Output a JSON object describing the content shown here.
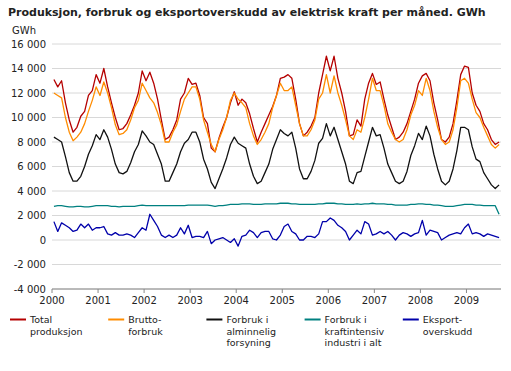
{
  "chart_data": {
    "type": "line",
    "title": "Produksjon, forbruk og eksportoverskudd av elektrisk kraft per måned. GWh",
    "y_label": "GWh",
    "grid": true,
    "legend": "bottom",
    "xlim": [
      2000,
      2009.75
    ],
    "xticks": [
      2000,
      2001,
      2002,
      2003,
      2004,
      2005,
      2006,
      2007,
      2008,
      2009
    ],
    "ylim": [
      -4000,
      16000
    ],
    "yticks": [
      {
        "value": -4000,
        "label": "-4 000"
      },
      {
        "value": -2000,
        "label": "-2 000"
      },
      0,
      {
        "value": 2000,
        "label": "2 000"
      },
      {
        "value": 4000,
        "label": "4 000"
      },
      {
        "value": 6000,
        "label": "6 000"
      },
      {
        "value": 8000,
        "label": "8 000"
      },
      {
        "value": 10000,
        "label": "10 000"
      },
      {
        "value": 12000,
        "label": "12 000"
      },
      {
        "value": 14000,
        "label": "14 000"
      },
      {
        "value": 16000,
        "label": "16 000"
      }
    ],
    "x": [
      2000.0416666667,
      2000.125,
      2000.2083333333,
      2000.2916666667,
      2000.375,
      2000.4583333333,
      2000.5416666667,
      2000.625,
      2000.7083333333,
      2000.7916666667,
      2000.875,
      2000.9583333333,
      2001.0416666667,
      2001.125,
      2001.2083333333,
      2001.2916666667,
      2001.375,
      2001.4583333333,
      2001.5416666667,
      2001.625,
      2001.7083333333,
      2001.7916666667,
      2001.875,
      2001.9583333333,
      2002.0416666667,
      2002.125,
      2002.2083333333,
      2002.2916666667,
      2002.375,
      2002.4583333333,
      2002.5416666667,
      2002.625,
      2002.7083333333,
      2002.7916666667,
      2002.875,
      2002.9583333333,
      2003.0416666667,
      2003.125,
      2003.2083333333,
      2003.2916666667,
      2003.375,
      2003.4583333333,
      2003.5416666667,
      2003.625,
      2003.7083333333,
      2003.7916666667,
      2003.875,
      2003.9583333333,
      2004.0416666667,
      2004.125,
      2004.2083333333,
      2004.2916666667,
      2004.375,
      2004.4583333333,
      2004.5416666667,
      2004.625,
      2004.7083333333,
      2004.7916666667,
      2004.875,
      2004.9583333333,
      2005.0416666667,
      2005.125,
      2005.2083333333,
      2005.2916666667,
      2005.375,
      2005.4583333333,
      2005.5416666667,
      2005.625,
      2005.7083333333,
      2005.7916666667,
      2005.875,
      2005.9583333333,
      2006.0416666667,
      2006.125,
      2006.2083333333,
      2006.2916666667,
      2006.375,
      2006.4583333333,
      2006.5416666667,
      2006.625,
      2006.7083333333,
      2006.7916666667,
      2006.875,
      2006.9583333333,
      2007.0416666667,
      2007.125,
      2007.2083333333,
      2007.2916666667,
      2007.375,
      2007.4583333333,
      2007.5416666667,
      2007.625,
      2007.7083333333,
      2007.7916666667,
      2007.875,
      2007.9583333333,
      2008.0416666667,
      2008.125,
      2008.2083333333,
      2008.2916666667,
      2008.375,
      2008.4583333333,
      2008.5416666667,
      2008.625,
      2008.7083333333,
      2008.7916666667,
      2008.875,
      2008.9583333333,
      2009.0416666667,
      2009.125,
      2009.2083333333,
      2009.2916666667,
      2009.375,
      2009.4583333333,
      2009.5416666667,
      2009.625,
      2009.7083333333
    ],
    "series": [
      {
        "name": "Total\nproduksjon",
        "color": "#b50000",
        "values": [
          13100,
          12500,
          13000,
          11200,
          9800,
          8800,
          9200,
          10100,
          10500,
          11800,
          12200,
          13500,
          12800,
          14000,
          12500,
          11200,
          10000,
          9000,
          9100,
          9500,
          10200,
          11000,
          12000,
          13800,
          13000,
          13700,
          12800,
          11500,
          9800,
          8200,
          8400,
          9000,
          9800,
          11500,
          12000,
          13200,
          12700,
          12800,
          11800,
          10000,
          9500,
          7500,
          7200,
          8300,
          9200,
          10000,
          11200,
          12100,
          11000,
          11500,
          11200,
          10300,
          9100,
          8000,
          8800,
          9500,
          10200,
          10900,
          11800,
          13200,
          13300,
          13500,
          13200,
          11500,
          9500,
          8500,
          8800,
          9300,
          10000,
          12000,
          13500,
          15000,
          13800,
          15000,
          13200,
          12000,
          10500,
          8500,
          8600,
          9800,
          9300,
          11500,
          12800,
          13600,
          12700,
          12900,
          11500,
          10200,
          9200,
          8200,
          8400,
          8800,
          9500,
          10500,
          11500,
          12800,
          13400,
          13600,
          13000,
          11200,
          9800,
          8200,
          8000,
          8400,
          9500,
          11400,
          13500,
          14200,
          14100,
          12000,
          11000,
          10500,
          9500,
          9000,
          8200,
          7800,
          8000
        ]
      },
      {
        "name": "Brutto-\nforbruk",
        "color": "#ff8c00",
        "values": [
          12000,
          11800,
          11600,
          10000,
          8800,
          8100,
          8400,
          8800,
          9500,
          10500,
          11400,
          12500,
          11800,
          12900,
          12000,
          10800,
          9400,
          8600,
          8700,
          9000,
          9800,
          10800,
          11400,
          12800,
          12200,
          11600,
          11200,
          10400,
          9400,
          8000,
          8000,
          8800,
          9400,
          10500,
          11500,
          12000,
          12500,
          12500,
          11500,
          9800,
          8800,
          7800,
          7200,
          8200,
          9000,
          10000,
          11400,
          12000,
          11500,
          11200,
          10800,
          9500,
          8500,
          7800,
          8200,
          8800,
          9500,
          10800,
          11800,
          12800,
          12200,
          12200,
          12500,
          11000,
          9500,
          8500,
          8500,
          9000,
          9800,
          11500,
          12000,
          13500,
          12000,
          13400,
          12000,
          11000,
          9800,
          8500,
          8200,
          9000,
          8800,
          10000,
          11500,
          13200,
          12200,
          12200,
          11000,
          9500,
          8800,
          8200,
          8000,
          8200,
          9000,
          10200,
          11000,
          12200,
          11800,
          13200,
          12200,
          10500,
          9200,
          8200,
          7800,
          8000,
          9000,
          10800,
          13000,
          13200,
          12800,
          11500,
          10400,
          10000,
          9200,
          8500,
          7800,
          7500,
          7800
        ]
      },
      {
        "name": "Forbruk i\nalminnelig\nforsyning",
        "color": "#111111",
        "values": [
          8400,
          8200,
          8000,
          6800,
          5500,
          4800,
          4800,
          5200,
          6000,
          7000,
          7700,
          8600,
          8200,
          9000,
          8400,
          7400,
          6200,
          5500,
          5400,
          5600,
          6300,
          7200,
          7800,
          8900,
          8500,
          8000,
          7800,
          7000,
          6200,
          4800,
          4800,
          5500,
          6200,
          7200,
          7900,
          8200,
          8800,
          8800,
          8000,
          6600,
          5800,
          4700,
          4200,
          5000,
          5800,
          6700,
          7800,
          8400,
          7900,
          7700,
          7500,
          6200,
          5200,
          4600,
          4800,
          5500,
          6200,
          7400,
          8200,
          9000,
          8700,
          8500,
          8800,
          7500,
          5800,
          5000,
          5000,
          5600,
          6500,
          7900,
          8300,
          9500,
          8500,
          9200,
          8200,
          7200,
          6200,
          4800,
          4600,
          5500,
          5600,
          6800,
          8000,
          9200,
          8500,
          8600,
          7500,
          6200,
          5500,
          4800,
          4600,
          4800,
          5600,
          6900,
          7700,
          8700,
          8200,
          9300,
          8500,
          7000,
          5800,
          4800,
          4500,
          4800,
          5800,
          7300,
          9200,
          9200,
          9000,
          7600,
          6600,
          6400,
          5500,
          5000,
          4500,
          4200,
          4500
        ]
      },
      {
        "name": "Forbruk i\nkraftintensiv\nindustri i alt",
        "color": "#008080",
        "values": [
          2750,
          2800,
          2800,
          2750,
          2700,
          2700,
          2750,
          2750,
          2700,
          2700,
          2750,
          2800,
          2800,
          2800,
          2800,
          2750,
          2750,
          2700,
          2750,
          2750,
          2750,
          2750,
          2800,
          2850,
          2800,
          2800,
          2800,
          2800,
          2800,
          2800,
          2800,
          2800,
          2800,
          2800,
          2800,
          2850,
          2850,
          2850,
          2850,
          2850,
          2850,
          2800,
          2750,
          2800,
          2800,
          2850,
          2900,
          2900,
          2900,
          2950,
          2950,
          2950,
          2900,
          2900,
          2900,
          2950,
          2950,
          2950,
          2950,
          3000,
          3000,
          3000,
          2950,
          2950,
          2900,
          2900,
          2900,
          2900,
          2900,
          2950,
          2950,
          3000,
          3000,
          3000,
          2950,
          2950,
          2900,
          2900,
          2900,
          2950,
          2900,
          2950,
          2950,
          3000,
          2950,
          2950,
          2950,
          2900,
          2900,
          2850,
          2850,
          2850,
          2850,
          2900,
          2900,
          2950,
          2950,
          2900,
          2900,
          2850,
          2850,
          2800,
          2750,
          2750,
          2750,
          2800,
          2850,
          2900,
          2900,
          2900,
          2850,
          2850,
          2800,
          2800,
          2800,
          2800,
          2100
        ]
      },
      {
        "name": "Eksport-\noverskudd",
        "color": "#0000aa",
        "values": [
          1500,
          700,
          1400,
          1200,
          1000,
          700,
          800,
          1300,
          1000,
          1300,
          800,
          1000,
          1000,
          1100,
          500,
          400,
          600,
          400,
          400,
          500,
          400,
          200,
          600,
          1000,
          800,
          2100,
          1600,
          1100,
          400,
          200,
          400,
          200,
          400,
          1000,
          500,
          1200,
          200,
          300,
          300,
          200,
          700,
          -300,
          0,
          100,
          200,
          0,
          -200,
          100,
          -500,
          300,
          400,
          800,
          600,
          200,
          600,
          700,
          700,
          100,
          0,
          400,
          1100,
          1300,
          700,
          500,
          0,
          0,
          300,
          300,
          200,
          500,
          1500,
          1500,
          1800,
          1600,
          1200,
          1000,
          700,
          0,
          400,
          800,
          500,
          1500,
          1300,
          400,
          500,
          700,
          500,
          700,
          400,
          0,
          400,
          600,
          500,
          300,
          500,
          600,
          1600,
          400,
          800,
          700,
          600,
          0,
          200,
          400,
          500,
          600,
          500,
          1000,
          1300,
          500,
          600,
          500,
          300,
          500,
          400,
          300,
          200
        ]
      }
    ]
  }
}
